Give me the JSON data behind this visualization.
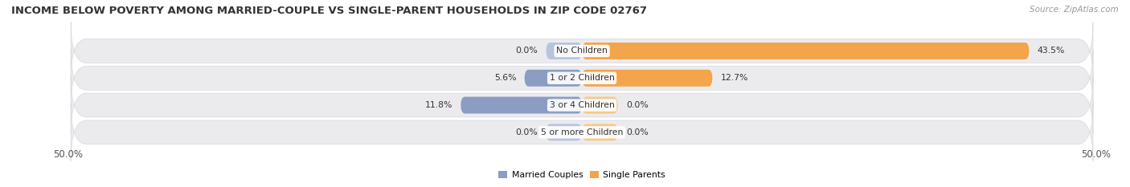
{
  "title": "INCOME BELOW POVERTY AMONG MARRIED-COUPLE VS SINGLE-PARENT HOUSEHOLDS IN ZIP CODE 02767",
  "source": "Source: ZipAtlas.com",
  "categories": [
    "No Children",
    "1 or 2 Children",
    "3 or 4 Children",
    "5 or more Children"
  ],
  "married_values": [
    0.0,
    5.6,
    11.8,
    0.0
  ],
  "single_values": [
    43.5,
    12.7,
    0.0,
    0.0
  ],
  "married_color": "#8b9dc3",
  "married_color_light": "#b8c4de",
  "single_color": "#f4a44a",
  "single_color_light": "#f5c98a",
  "row_bg_color": "#ebebee",
  "row_bg_edge": "#d8d8de",
  "axis_limit": 50.0,
  "legend_labels": [
    "Married Couples",
    "Single Parents"
  ],
  "title_fontsize": 9.5,
  "label_fontsize": 7.8,
  "value_fontsize": 7.8,
  "tick_fontsize": 8.5,
  "source_fontsize": 7.5
}
